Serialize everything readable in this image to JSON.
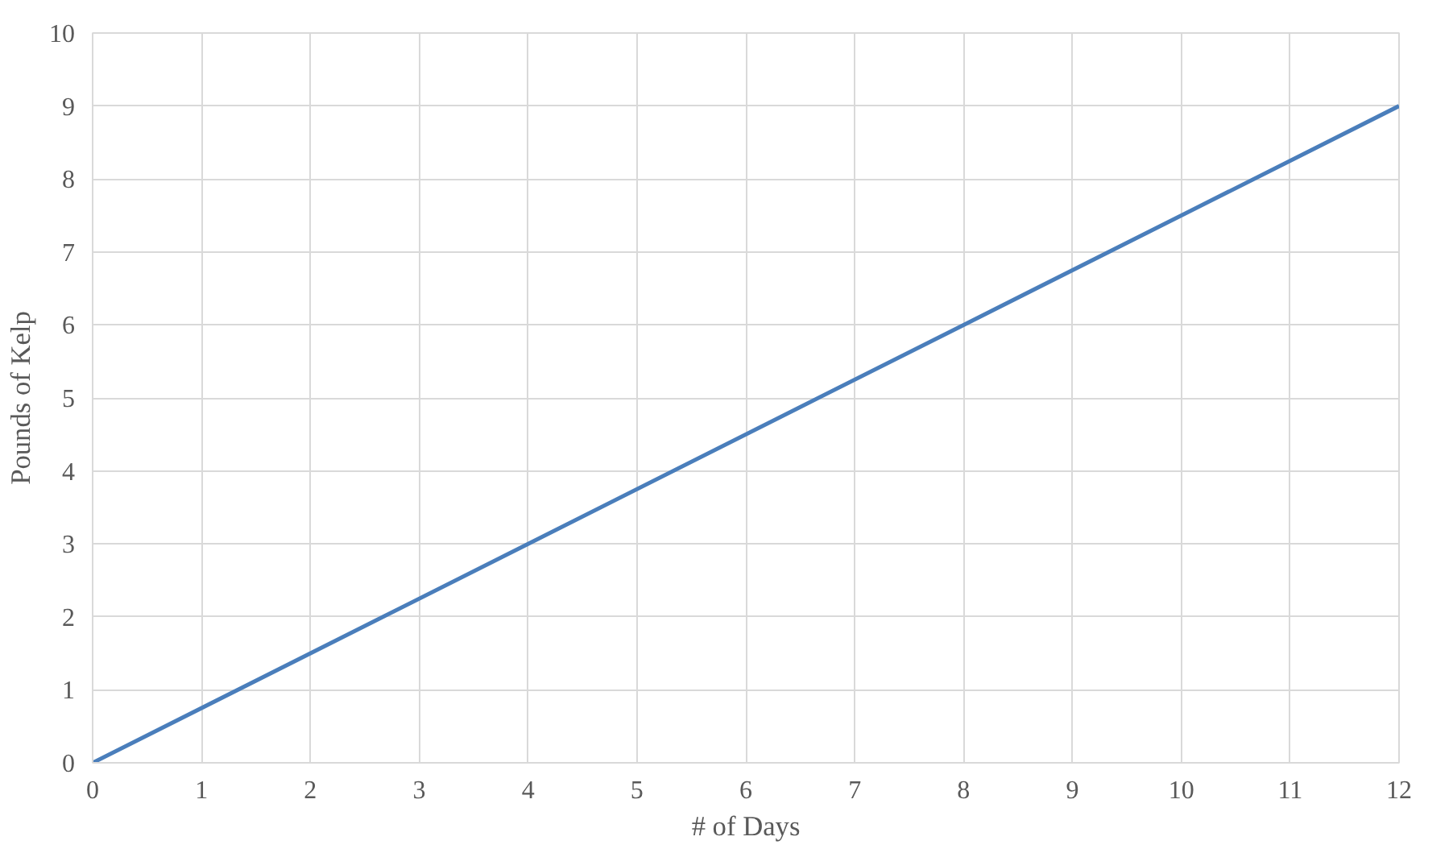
{
  "chart_data": {
    "type": "line",
    "xlabel": "# of Days",
    "ylabel": "Pounds of Kelp",
    "x": [
      0,
      4,
      8,
      12
    ],
    "series": [
      {
        "color": "#4a7ebb",
        "values": [
          0,
          3,
          6,
          9
        ]
      }
    ],
    "xlim": [
      0,
      12
    ],
    "xticks": [
      0,
      1,
      2,
      3,
      4,
      5,
      6,
      7,
      8,
      9,
      10,
      11,
      12
    ],
    "ylim": [
      0,
      10
    ],
    "yticks": [
      0,
      1,
      2,
      3,
      4,
      5,
      6,
      7,
      8,
      9,
      10
    ],
    "grid": true,
    "marker": "none",
    "line_style": "solid"
  }
}
